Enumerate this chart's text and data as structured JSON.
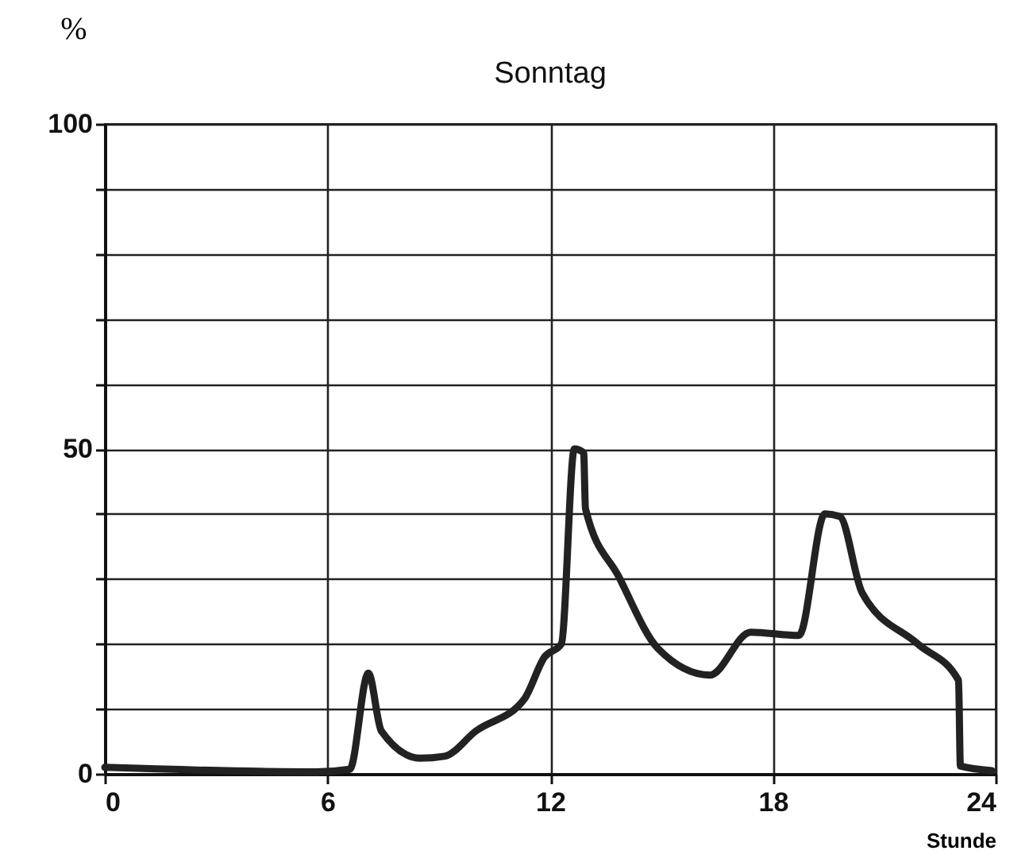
{
  "chart_data": {
    "type": "line",
    "title": "Sonntag",
    "xlabel": "Stunde",
    "ylabel": "%",
    "x": [
      0,
      5.7,
      6.6,
      7.1,
      7.45,
      8.5,
      9.15,
      10,
      11.3,
      11.85,
      12.3,
      12.65,
      12.9,
      12.95,
      13.85,
      14.9,
      16.3,
      17.4,
      18.7,
      19.4,
      19.8,
      20.4,
      21.9,
      23,
      23.05,
      23.9
    ],
    "series": [
      {
        "color": "#222222",
        "values": [
          1,
          0.3,
          0.7,
          15.5,
          6.6,
          2.4,
          2.7,
          6.6,
          11.5,
          18,
          20,
          50,
          49.4,
          40.8,
          30.3,
          19.3,
          15.2,
          21.8,
          21.3,
          40,
          39.6,
          27.9,
          20,
          14.4,
          1.2,
          0.5
        ]
      }
    ],
    "xlim": [
      0,
      24
    ],
    "xticks": [
      0,
      6,
      12,
      18,
      24
    ],
    "ylim": [
      0,
      100
    ],
    "yticks": [
      0,
      {
        "value": 10,
        "label": null
      },
      {
        "value": 20,
        "label": null
      },
      {
        "value": 30,
        "label": null
      },
      {
        "value": 40,
        "label": null
      },
      50,
      {
        "value": 60,
        "label": null
      },
      {
        "value": 70,
        "label": null
      },
      {
        "value": 80,
        "label": null
      },
      {
        "value": 90,
        "label": null
      },
      100
    ],
    "grid": true,
    "marker": "none",
    "line_style": "solid"
  }
}
